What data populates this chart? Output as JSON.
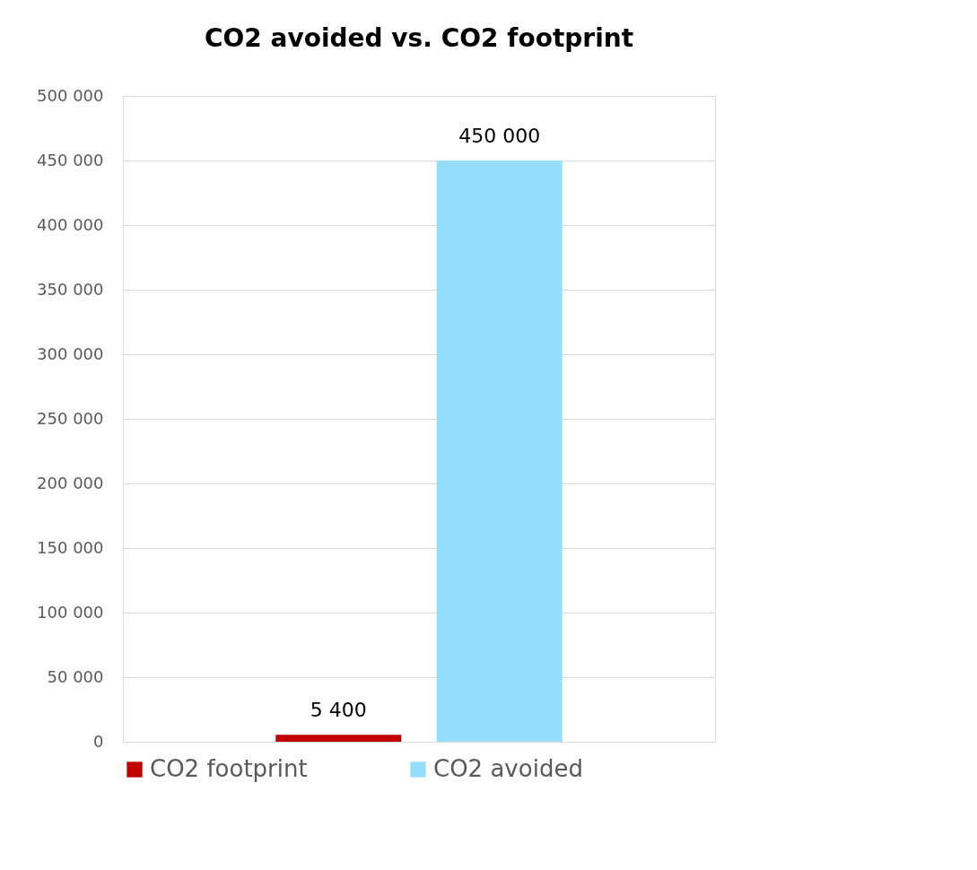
{
  "chart_data": {
    "type": "bar",
    "title": "CO2 avoided vs. CO2 footprint",
    "categories": [
      null
    ],
    "series": [
      {
        "name": "CO2 footprint",
        "color": "#c00000",
        "values": [
          5400
        ],
        "value_labels": [
          "5 400"
        ]
      },
      {
        "name": "CO2 avoided",
        "color": "#93dffd",
        "values": [
          450000
        ],
        "value_labels": [
          "450 000"
        ]
      }
    ],
    "ylim": [
      0,
      500000
    ],
    "yticks": [
      0,
      {
        "value": 50000,
        "label": "50 000"
      },
      {
        "value": 100000,
        "label": "100 000"
      },
      {
        "value": 150000,
        "label": "150 000"
      },
      {
        "value": 200000,
        "label": "200 000"
      },
      {
        "value": 250000,
        "label": "250 000"
      },
      {
        "value": 300000,
        "label": "300 000"
      },
      {
        "value": 350000,
        "label": "350 000"
      },
      {
        "value": 400000,
        "label": "400 000"
      },
      {
        "value": 450000,
        "label": "450 000"
      },
      {
        "value": 500000,
        "label": "500 000"
      }
    ],
    "grid": "y",
    "legend": "bottom",
    "tick_labels": "y"
  }
}
